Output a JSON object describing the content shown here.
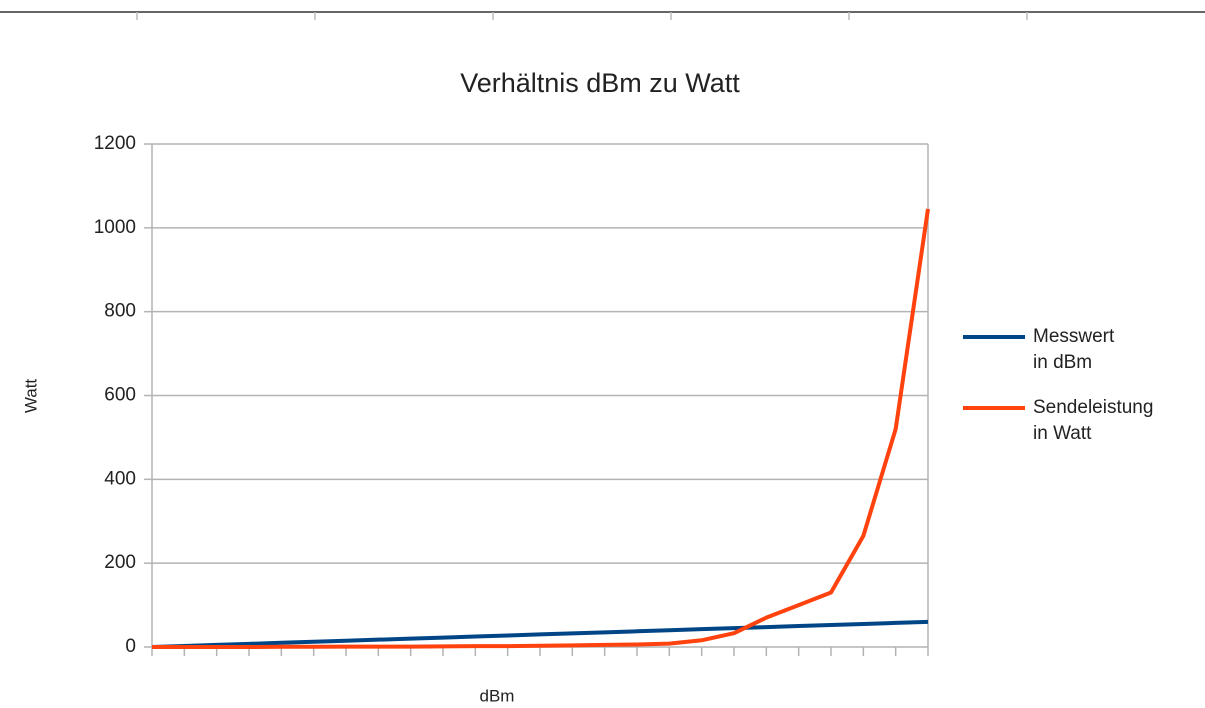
{
  "chart_data": {
    "type": "line",
    "title": "Verhältnis dBm zu Watt",
    "x_label": "dBm",
    "y_label": "Watt",
    "categories": [
      null,
      null,
      null,
      null,
      null,
      null,
      null,
      null,
      null,
      null,
      null,
      null,
      null,
      null,
      null,
      null,
      null,
      null,
      null,
      null,
      null,
      null,
      null,
      null,
      null
    ],
    "series": [
      {
        "name": "Messwert in dBm",
        "color": "#004586",
        "values": [
          0,
          2.5,
          5,
          7.5,
          10,
          12.5,
          15,
          17.5,
          20,
          22.5,
          25,
          27.5,
          30,
          32.5,
          35,
          37.5,
          40,
          42.5,
          45,
          47.5,
          50,
          52.5,
          55,
          57.5,
          60
        ]
      },
      {
        "name": "Sendeleistung in Watt",
        "color": "#ff420e",
        "values": [
          0,
          0,
          0,
          0,
          0.5,
          0.5,
          1,
          1,
          1,
          1.5,
          2,
          2,
          3,
          4,
          5,
          6,
          8,
          16,
          33,
          70,
          100,
          130,
          265,
          520,
          1045
        ]
      }
    ],
    "ylim": [
      0,
      1200
    ],
    "yticks": [
      0,
      200,
      400,
      600,
      800,
      1000,
      1200
    ],
    "grid": true,
    "legend": "right"
  }
}
